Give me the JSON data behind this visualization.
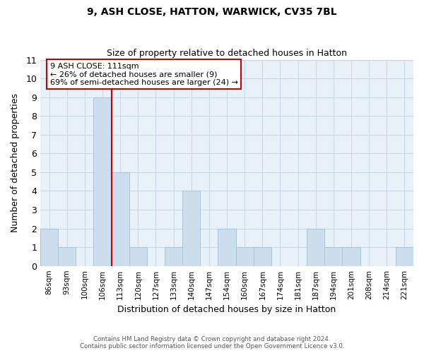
{
  "title1": "9, ASH CLOSE, HATTON, WARWICK, CV35 7BL",
  "title2": "Size of property relative to detached houses in Hatton",
  "xlabel": "Distribution of detached houses by size in Hatton",
  "ylabel": "Number of detached properties",
  "categories": [
    "86sqm",
    "93sqm",
    "100sqm",
    "106sqm",
    "113sqm",
    "120sqm",
    "127sqm",
    "133sqm",
    "140sqm",
    "147sqm",
    "154sqm",
    "160sqm",
    "167sqm",
    "174sqm",
    "181sqm",
    "187sqm",
    "194sqm",
    "201sqm",
    "208sqm",
    "214sqm",
    "221sqm"
  ],
  "values": [
    2,
    1,
    0,
    9,
    5,
    1,
    0,
    1,
    4,
    0,
    2,
    1,
    1,
    0,
    0,
    2,
    1,
    1,
    0,
    0,
    1
  ],
  "bar_color": "#ccdded",
  "bar_edge_color": "#a8c4d8",
  "highlight_bar_index": 3,
  "highlight_line_color": "#cc0000",
  "ylim": [
    0,
    11
  ],
  "yticks": [
    0,
    1,
    2,
    3,
    4,
    5,
    6,
    7,
    8,
    9,
    10,
    11
  ],
  "annotation_title": "9 ASH CLOSE: 111sqm",
  "annotation_line1": "← 26% of detached houses are smaller (9)",
  "annotation_line2": "69% of semi-detached houses are larger (24) →",
  "annotation_box_edge": "#cc0000",
  "footer1": "Contains HM Land Registry data © Crown copyright and database right 2024.",
  "footer2": "Contains public sector information licensed under the Open Government Licence v3.0.",
  "grid_color": "#c8d8e8",
  "background_color": "#e8f0f8"
}
